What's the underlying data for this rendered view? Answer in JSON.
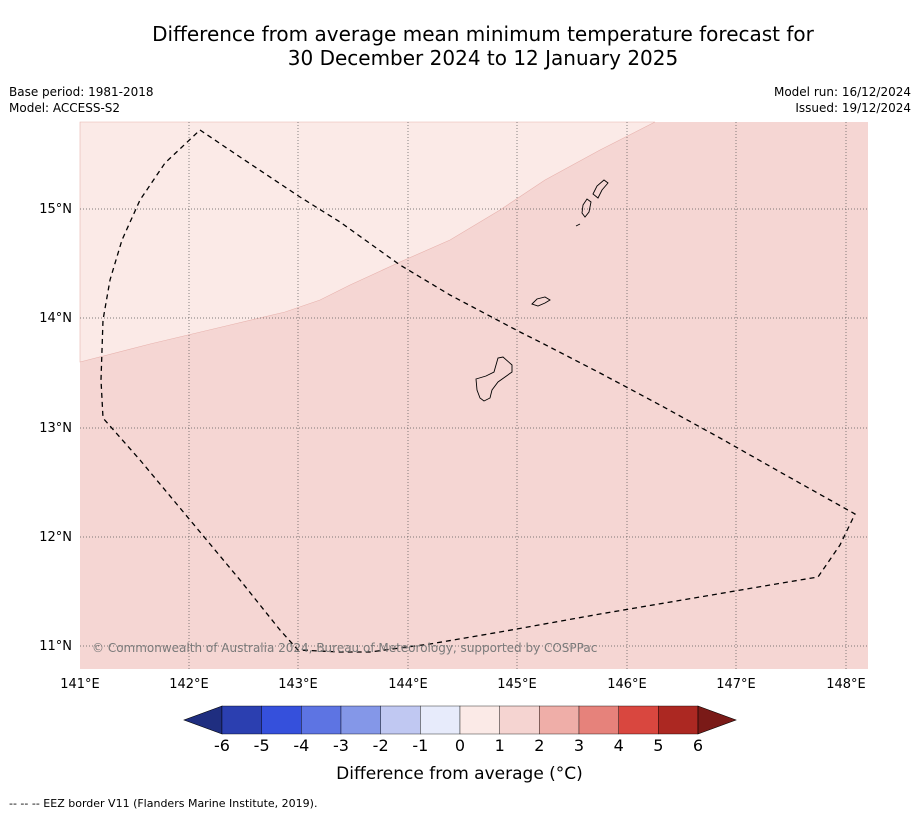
{
  "title_line1": "Difference from average mean minimum temperature forecast for",
  "title_line2": "30 December 2024 to 12 January 2025",
  "base_period": "Base period: 1981-2018",
  "model": "Model: ACCESS-S2",
  "model_run": "Model run: 16/12/2024",
  "issued": "Issued: 19/12/2024",
  "copyright": "© Commonwealth of Australia 2024, Bureau of Meteorology, supported by COSPPac",
  "lon_labels": [
    "141°E",
    "142°E",
    "143°E",
    "144°E",
    "145°E",
    "146°E",
    "147°E",
    "148°E"
  ],
  "lat_labels": [
    "15°N",
    "14°N",
    "13°N",
    "12°N",
    "11°N"
  ],
  "colorbar": {
    "ticks": [
      "-6",
      "-5",
      "-4",
      "-3",
      "-2",
      "-1",
      "0",
      "1",
      "2",
      "3",
      "4",
      "5",
      "6"
    ],
    "colors": [
      "#1f2e80",
      "#2b3fb0",
      "#3550dc",
      "#5d74e3",
      "#8497e8",
      "#c0c8f2",
      "#e7ebfb",
      "#fbeae7",
      "#f5d4d1",
      "#efaea8",
      "#e6827b",
      "#d9473f",
      "#ac2822",
      "#7a1a17"
    ],
    "label": "Difference from average ($^\\circ$C)",
    "label_display": "Difference from average (°C)"
  },
  "footer": "--  --  -- EEZ border V11 (Flanders Marine Institute, 2019).",
  "map_colors": {
    "zone_0_1": "#fbeae7",
    "zone_1_2": "#f5d6d3"
  }
}
